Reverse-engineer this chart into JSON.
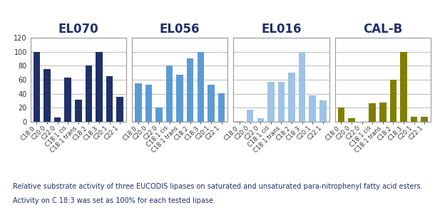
{
  "panels": [
    {
      "title": "EL070",
      "color": "#1F3168",
      "values": [
        100,
        75,
        6,
        63,
        32,
        80,
        100,
        65,
        36
      ],
      "ylim": [
        0,
        120
      ]
    },
    {
      "title": "EL056",
      "color": "#5B9BD5",
      "values": [
        55,
        53,
        20,
        80,
        67,
        91,
        100,
        53,
        41
      ],
      "ylim": [
        0,
        120
      ]
    },
    {
      "title": "EL016",
      "color": "#9DC3E6",
      "values": [
        1,
        17,
        5,
        57,
        57,
        70,
        100,
        38,
        31
      ],
      "ylim": [
        0,
        120
      ]
    },
    {
      "title": "CAL-B",
      "color": "#808000",
      "values": [
        20,
        5,
        0,
        27,
        28,
        60,
        100,
        7,
        7
      ],
      "ylim": [
        0,
        120
      ]
    }
  ],
  "categories": [
    "C18:0",
    "C20:0",
    "C22:0",
    "C18:1 cis",
    "C18:1 trans",
    "C18:2",
    "C18:3",
    "C20:1",
    "C22:1"
  ],
  "caption_line1": "Relative substrate activity of three EUCODIS lipases on saturated and unsaturated para-nitrophenyl fatty acid esters.",
  "caption_line2": "Activity on C 18:3 was set as 100% for each tested lipase.",
  "yticks": [
    0,
    20,
    40,
    60,
    80,
    100,
    120
  ],
  "background_color": "#FFFFFF",
  "panel_bg": "#FFFFFF",
  "grid_color": "#C0C0C0",
  "title_color": "#1F3168",
  "caption_color": "#1F3168",
  "title_fontsize": 12,
  "caption_fontsize": 7,
  "tick_label_fontsize": 6,
  "ytick_fontsize": 7
}
